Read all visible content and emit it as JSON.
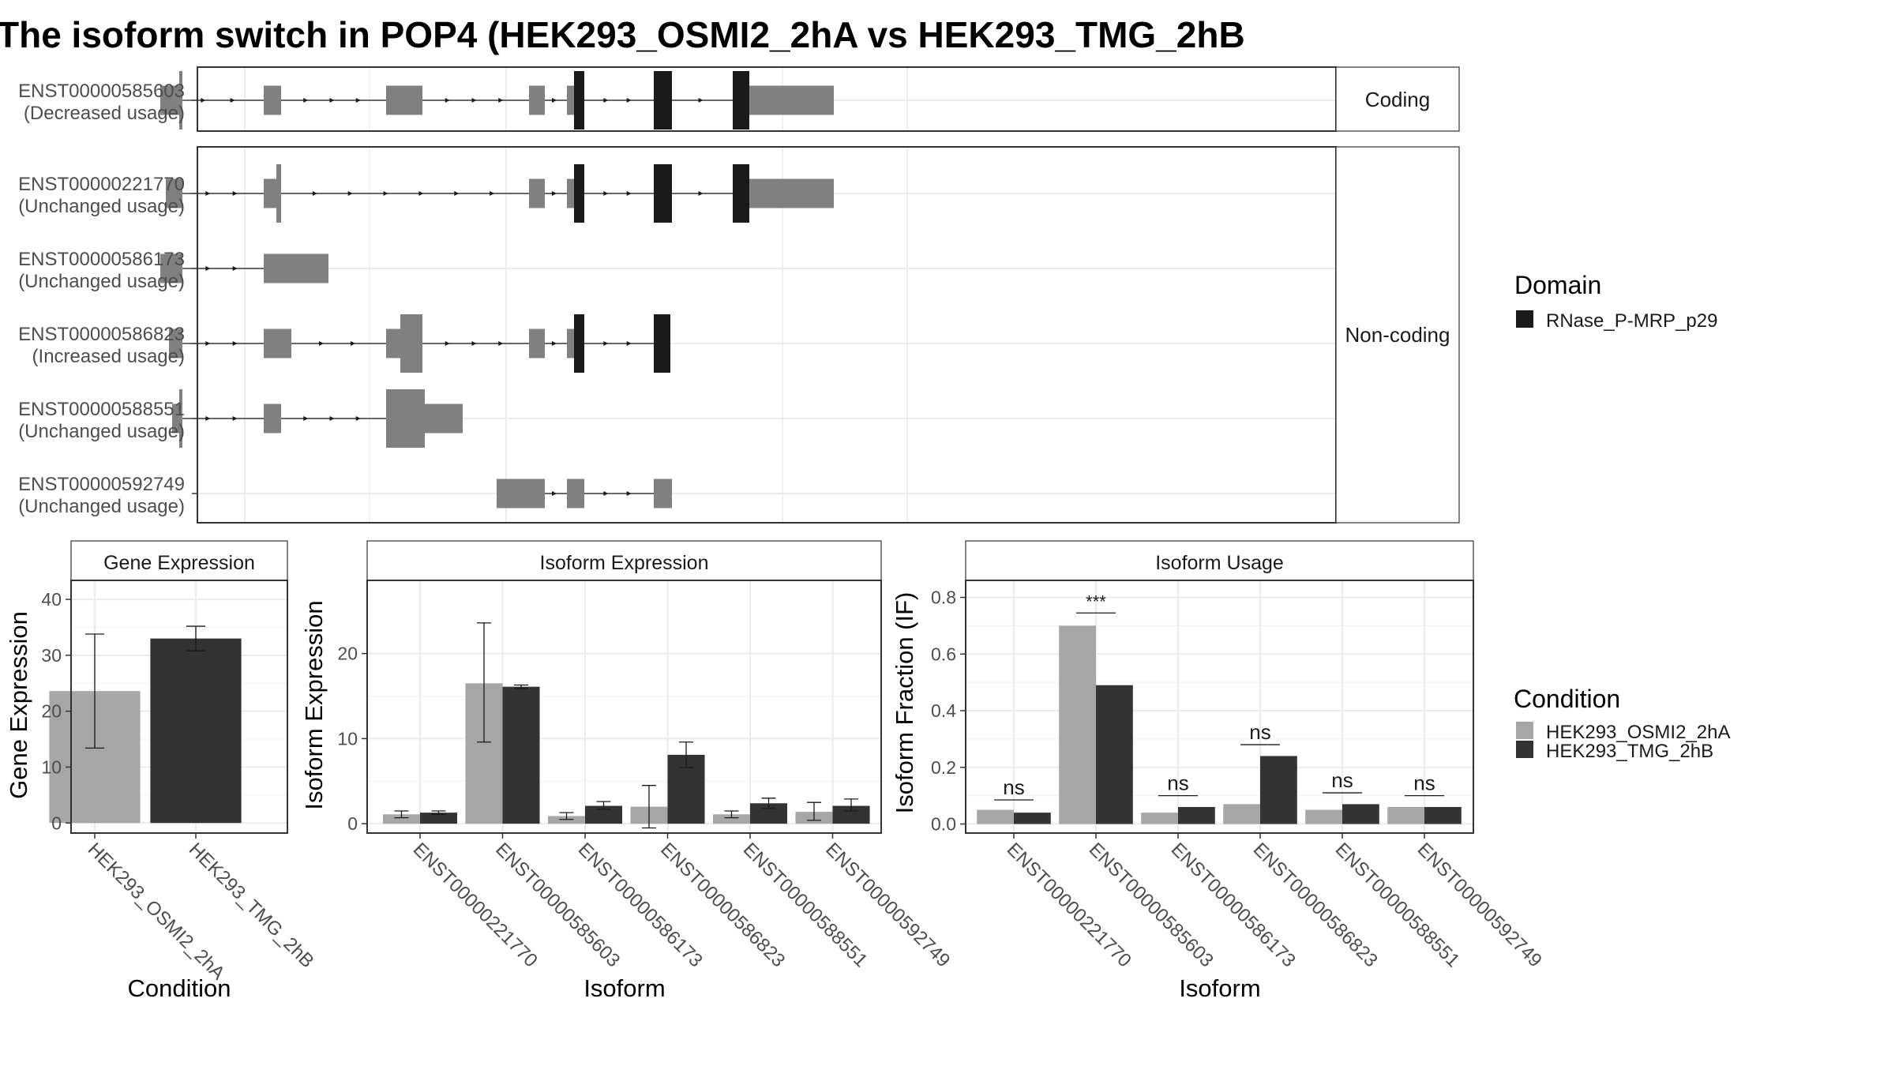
{
  "title": "The isoform switch in POP4 (HEK293_OSMI2_2hA vs HEK293_TMG_2hB",
  "colors": {
    "exon": "#808080",
    "domain": "#1a1a1a",
    "cond1": "#a6a6a6",
    "cond2": "#333333",
    "grid": "#ebebeb",
    "strip": "#ffffff"
  },
  "chart_data": [
    {
      "type": "gene-structure",
      "facets": [
        "Coding",
        "Non-coding"
      ],
      "transcripts": [
        {
          "facet": 0,
          "id": "ENST00000585603",
          "label_line2": "(Decreased usage)",
          "introns": [
            [
              222,
              334
            ],
            [
              356,
              489
            ],
            [
              535,
              670
            ],
            [
              690,
              718
            ],
            [
              740,
              828
            ],
            [
              851,
              928
            ]
          ],
          "utr": [
            [
              203,
              230
            ],
            [
              334,
              356
            ],
            [
              489,
              535
            ],
            [
              670,
              690
            ],
            [
              718,
              727
            ],
            [
              949,
              1056
            ]
          ],
          "cds": [
            [
              227,
              231
            ]
          ],
          "domain": [
            [
              727,
              740
            ],
            [
              828,
              851
            ],
            [
              928,
              949
            ]
          ]
        },
        {
          "facet": 1,
          "id": "ENST00000221770",
          "label_line2": "(Unchanged usage)",
          "introns": [
            [
              231,
              334
            ],
            [
              356,
              670
            ],
            [
              690,
              718
            ],
            [
              740,
              828
            ],
            [
              851,
              928
            ]
          ],
          "utr": [
            [
              210,
              231
            ],
            [
              334,
              350
            ],
            [
              670,
              690
            ],
            [
              718,
              727
            ],
            [
              949,
              1056
            ]
          ],
          "cds": [
            [
              350,
              356
            ]
          ],
          "domain": [
            [
              727,
              740
            ],
            [
              828,
              851
            ],
            [
              928,
              949
            ]
          ]
        },
        {
          "facet": 1,
          "id": "ENST00000586173",
          "label_line2": "(Unchanged usage)",
          "introns": [
            [
              231,
              334
            ]
          ],
          "utr": [
            [
              203,
              231
            ],
            [
              334,
              416
            ]
          ],
          "cds": [],
          "domain": []
        },
        {
          "facet": 1,
          "id": "ENST00000586823",
          "label_line2": "(Increased usage)",
          "introns": [
            [
              231,
              334
            ],
            [
              369,
              489
            ],
            [
              535,
              670
            ],
            [
              690,
              718
            ],
            [
              740,
              828
            ]
          ],
          "utr": [
            [
              214,
              231
            ],
            [
              334,
              369
            ],
            [
              489,
              507
            ],
            [
              670,
              690
            ],
            [
              718,
              727
            ]
          ],
          "cds": [
            [
              507,
              535
            ]
          ],
          "domain": [
            [
              727,
              740
            ],
            [
              828,
              849
            ]
          ]
        },
        {
          "facet": 1,
          "id": "ENST00000588551",
          "label_line2": "(Unchanged usage)",
          "introns": [
            [
              231,
              334
            ],
            [
              356,
              489
            ]
          ],
          "utr": [
            [
              218,
              227
            ],
            [
              334,
              356
            ],
            [
              538,
              586
            ]
          ],
          "cds": [
            [
              227,
              231
            ],
            [
              489,
              538
            ]
          ],
          "domain": []
        },
        {
          "facet": 1,
          "id": "ENST00000592749",
          "label_line2": "(Unchanged usage)",
          "introns": [
            [
              690,
              718
            ],
            [
              740,
              828
            ]
          ],
          "utr": [
            [
              629,
              690
            ],
            [
              718,
              740
            ],
            [
              828,
              851
            ]
          ],
          "cds": [],
          "domain": []
        }
      ],
      "legend": {
        "title": "Domain",
        "entries": [
          "RNase_P-MRP_p29"
        ]
      }
    },
    {
      "type": "bar",
      "title": "Gene Expression",
      "xlabel": "Condition",
      "ylabel": "Gene Expression",
      "categories": [
        "HEK293_OSMI2_2hA",
        "HEK293_TMG_2hB"
      ],
      "values": [
        23.6,
        33.0
      ],
      "errors": [
        [
          13.4,
          33.8
        ],
        [
          30.8,
          35.2
        ]
      ],
      "ylim": [
        -1.8,
        43.4
      ],
      "yticks": [
        0,
        10,
        20,
        30,
        40
      ]
    },
    {
      "type": "bar",
      "title": "Isoform Expression",
      "xlabel": "Isoform",
      "ylabel": "Isoform Expression",
      "categories": [
        "ENST00000221770",
        "ENST00000585603",
        "ENST00000586173",
        "ENST00000586823",
        "ENST00000588551",
        "ENST00000592749"
      ],
      "series": [
        {
          "name": "HEK293_OSMI2_2hA",
          "values": [
            1.1,
            16.5,
            0.9,
            2.0,
            1.1,
            1.4
          ]
        },
        {
          "name": "HEK293_TMG_2hB",
          "values": [
            1.3,
            16.1,
            2.1,
            8.1,
            2.4,
            2.1
          ]
        }
      ],
      "errors": [
        [
          [
            0.7,
            1.5
          ],
          [
            9.6,
            23.6
          ],
          [
            0.5,
            1.3
          ],
          [
            -0.5,
            4.5
          ],
          [
            0.7,
            1.5
          ],
          [
            0.4,
            2.5
          ]
        ],
        [
          [
            1.1,
            1.5
          ],
          [
            15.9,
            16.3
          ],
          [
            1.7,
            2.6
          ],
          [
            6.6,
            9.6
          ],
          [
            1.8,
            3.0
          ],
          [
            1.5,
            2.9
          ]
        ]
      ],
      "ylim": [
        -1.1,
        28.6
      ],
      "yticks": [
        0,
        10,
        20
      ]
    },
    {
      "type": "bar",
      "title": "Isoform Usage",
      "xlabel": "Isoform",
      "ylabel": "Isoform Fraction (IF)",
      "categories": [
        "ENST00000221770",
        "ENST00000585603",
        "ENST00000586173",
        "ENST00000586823",
        "ENST00000588551",
        "ENST00000592749"
      ],
      "series": [
        {
          "name": "HEK293_OSMI2_2hA",
          "values": [
            0.05,
            0.7,
            0.04,
            0.07,
            0.05,
            0.06
          ]
        },
        {
          "name": "HEK293_TMG_2hB",
          "values": [
            0.04,
            0.49,
            0.06,
            0.24,
            0.07,
            0.06
          ]
        }
      ],
      "significance": [
        "ns",
        "***",
        "ns",
        "ns",
        "ns",
        "ns"
      ],
      "sig_level": [
        0.085,
        0.745,
        0.1,
        0.28,
        0.11,
        0.1
      ],
      "ylim": [
        -0.032,
        0.86
      ],
      "yticks": [
        0.0,
        0.2,
        0.4,
        0.6,
        0.8
      ]
    }
  ],
  "condition_legend": {
    "title": "Condition",
    "entries": [
      "HEK293_OSMI2_2hA",
      "HEK293_TMG_2hB"
    ]
  }
}
